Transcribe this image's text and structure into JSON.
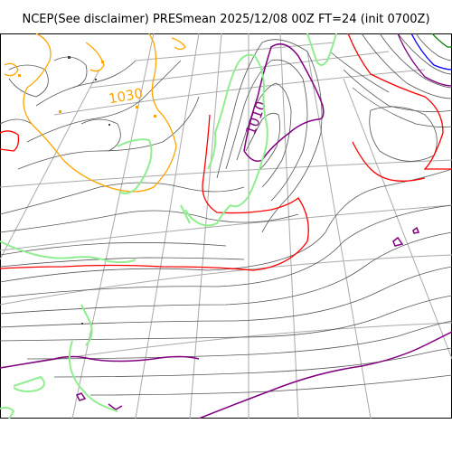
{
  "title": "NCEP(See disclaimer) PRESmean 2025/12/08 00Z FT=24 (init 0700Z)",
  "contour_labels": {
    "high_label": "1030",
    "low_label": "1010"
  },
  "colors": {
    "isobar": "#000000",
    "graticule": "#999999",
    "coastline": "#90ee90",
    "contour_1030": "#ffa500",
    "contour_1010": "#800080",
    "contour_1020": "#ff0000",
    "contour_high_pressure_blue": "#0000ff",
    "contour_high_pressure_green": "#008000"
  },
  "map_features": [
    "isobars",
    "graticule",
    "coastline",
    "pressure-label-1030",
    "pressure-label-1010"
  ]
}
